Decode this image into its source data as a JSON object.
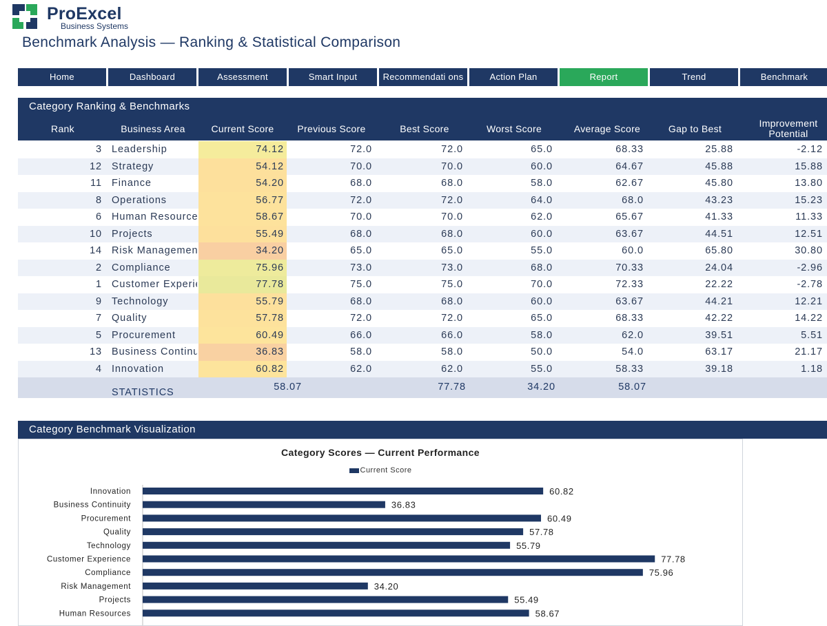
{
  "brand": {
    "name": "ProExcel",
    "subtitle": "Business Systems",
    "colors": {
      "navy": "#1f3864",
      "green": "#2aa85a"
    }
  },
  "page_title": "Benchmark Analysis — Ranking & Statistical Comparison",
  "nav": {
    "tabs": [
      {
        "label": "Home",
        "active": false
      },
      {
        "label": "Dashboard",
        "active": false
      },
      {
        "label": "Assessment",
        "active": false
      },
      {
        "label": "Smart Input",
        "active": false
      },
      {
        "label": "Recommendati ons",
        "active": false
      },
      {
        "label": "Action Plan",
        "active": false
      },
      {
        "label": "Report",
        "active": true
      },
      {
        "label": "Trend",
        "active": false
      },
      {
        "label": "Benchmark",
        "active": false
      }
    ]
  },
  "ranking": {
    "title": "Category Ranking & Benchmarks",
    "headers": [
      "Rank",
      "Business Area",
      "Current Score",
      "Previous Score",
      "Best Score",
      "Worst Score",
      "Average Score",
      "Gap to Best",
      "Improvement Potential"
    ],
    "rows": [
      {
        "rank": "3",
        "area": "Leadership",
        "current": "74.12",
        "previous": "72.0",
        "best": "72.0",
        "worst": "65.0",
        "average": "68.33",
        "gap": "25.88",
        "improvement": "-2.12",
        "heat": "#f5ec9c"
      },
      {
        "rank": "12",
        "area": "Strategy",
        "current": "54.12",
        "previous": "70.0",
        "best": "70.0",
        "worst": "60.0",
        "average": "64.67",
        "gap": "45.88",
        "improvement": "15.88",
        "heat": "#fde09c"
      },
      {
        "rank": "11",
        "area": "Finance",
        "current": "54.20",
        "previous": "68.0",
        "best": "68.0",
        "worst": "58.0",
        "average": "62.67",
        "gap": "45.80",
        "improvement": "13.80",
        "heat": "#fde09c"
      },
      {
        "rank": "8",
        "area": "Operations",
        "current": "56.77",
        "previous": "72.0",
        "best": "72.0",
        "worst": "64.0",
        "average": "68.0",
        "gap": "43.23",
        "improvement": "15.23",
        "heat": "#fde29c"
      },
      {
        "rank": "6",
        "area": "Human Resources",
        "current": "58.67",
        "previous": "70.0",
        "best": "70.0",
        "worst": "62.0",
        "average": "65.67",
        "gap": "41.33",
        "improvement": "11.33",
        "heat": "#fde29c"
      },
      {
        "rank": "10",
        "area": "Projects",
        "current": "55.49",
        "previous": "68.0",
        "best": "68.0",
        "worst": "60.0",
        "average": "63.67",
        "gap": "44.51",
        "improvement": "12.51",
        "heat": "#fde09c"
      },
      {
        "rank": "14",
        "area": "Risk Management",
        "current": "34.20",
        "previous": "65.0",
        "best": "65.0",
        "worst": "55.0",
        "average": "60.0",
        "gap": "65.80",
        "improvement": "30.80",
        "heat": "#f9cfa2"
      },
      {
        "rank": "2",
        "area": "Compliance",
        "current": "75.96",
        "previous": "73.0",
        "best": "73.0",
        "worst": "68.0",
        "average": "70.33",
        "gap": "24.04",
        "improvement": "-2.96",
        "heat": "#eeeb9c"
      },
      {
        "rank": "1",
        "area": "Customer Experience",
        "current": "77.78",
        "previous": "75.0",
        "best": "75.0",
        "worst": "70.0",
        "average": "72.33",
        "gap": "22.22",
        "improvement": "-2.78",
        "heat": "#e9e99b"
      },
      {
        "rank": "9",
        "area": "Technology",
        "current": "55.79",
        "previous": "68.0",
        "best": "68.0",
        "worst": "60.0",
        "average": "63.67",
        "gap": "44.21",
        "improvement": "12.21",
        "heat": "#fde09c"
      },
      {
        "rank": "7",
        "area": "Quality",
        "current": "57.78",
        "previous": "72.0",
        "best": "72.0",
        "worst": "65.0",
        "average": "68.33",
        "gap": "42.22",
        "improvement": "14.22",
        "heat": "#fde29c"
      },
      {
        "rank": "5",
        "area": "Procurement",
        "current": "60.49",
        "previous": "66.0",
        "best": "66.0",
        "worst": "58.0",
        "average": "62.0",
        "gap": "39.51",
        "improvement": "5.51",
        "heat": "#fde49c"
      },
      {
        "rank": "13",
        "area": "Business Continuity",
        "current": "36.83",
        "previous": "58.0",
        "best": "58.0",
        "worst": "50.0",
        "average": "54.0",
        "gap": "63.17",
        "improvement": "21.17",
        "heat": "#f9d1a2"
      },
      {
        "rank": "4",
        "area": "Innovation",
        "current": "60.82",
        "previous": "62.0",
        "best": "62.0",
        "worst": "55.0",
        "average": "58.33",
        "gap": "39.18",
        "improvement": "1.18",
        "heat": "#fde49c"
      }
    ],
    "statistics": {
      "label": "STATISTICS",
      "current": "58.07",
      "best": "77.78",
      "worst": "34.20",
      "average": "58.07"
    }
  },
  "visualization": {
    "title": "Category Benchmark Visualization"
  },
  "chart_data": {
    "type": "bar",
    "orientation": "horizontal",
    "title": "Category Scores — Current Performance",
    "legend": "top",
    "categories": [
      "Innovation",
      "Business Continuity",
      "Procurement",
      "Quality",
      "Technology",
      "Customer Experience",
      "Compliance",
      "Risk Management",
      "Projects",
      "Human Resources"
    ],
    "series": [
      {
        "name": "Current Score",
        "values": [
          60.82,
          36.83,
          60.49,
          57.78,
          55.79,
          77.78,
          75.96,
          34.2,
          55.49,
          58.67
        ],
        "labels": [
          "60.82",
          "36.83",
          "60.49",
          "57.78",
          "55.79",
          "77.78",
          "75.96",
          "34.20",
          "55.49",
          "58.67"
        ],
        "color": "#1f3864"
      }
    ],
    "xlim": [
      0,
      90
    ],
    "grid": false
  }
}
